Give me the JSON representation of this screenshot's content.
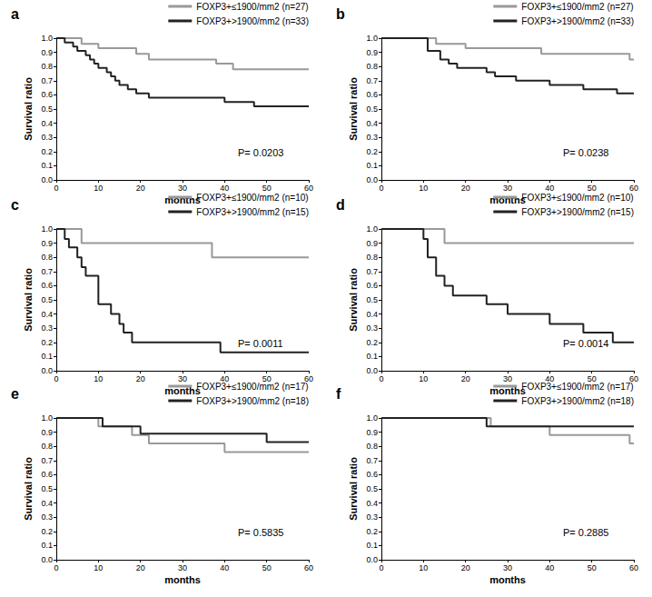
{
  "chart_data": [
    {
      "type": "step",
      "title": "a",
      "annotation": "P= 0.0203",
      "x_label": "months",
      "y_label": "Survival ratio",
      "xlim": [
        0,
        60
      ],
      "xticks": [
        0,
        10,
        20,
        30,
        40,
        50,
        60
      ],
      "ylim": [
        0,
        1
      ],
      "yticks": [
        {
          "value": 0,
          "label": "0.0"
        },
        0.1,
        0.2,
        0.3,
        0.4,
        0.5,
        0.6,
        0.7,
        0.8,
        0.9,
        {
          "value": 1,
          "label": "1.0"
        }
      ],
      "legend": "top-right",
      "grid": false,
      "series": [
        {
          "name": "FOXP3+≤1900/mm2 (n=27)",
          "color": "#999999",
          "x": [
            0,
            6,
            10,
            19,
            22,
            38,
            42,
            60
          ],
          "values": [
            1.0,
            0.96,
            0.93,
            0.89,
            0.85,
            0.82,
            0.78,
            0.78
          ]
        },
        {
          "name": "FOXP3+>1900/mm2 (n=33)",
          "color": "#222222",
          "x": [
            0,
            2,
            4,
            5,
            7,
            8,
            9,
            10,
            12,
            13,
            14,
            15,
            17,
            19,
            22,
            40,
            47,
            60
          ],
          "values": [
            1.0,
            0.97,
            0.94,
            0.91,
            0.88,
            0.85,
            0.82,
            0.79,
            0.76,
            0.73,
            0.7,
            0.67,
            0.64,
            0.61,
            0.58,
            0.55,
            0.52,
            0.52
          ]
        }
      ]
    },
    {
      "type": "step",
      "title": "b",
      "annotation": "P= 0.0238",
      "x_label": "months",
      "y_label": "Survival ratio",
      "xlim": [
        0,
        60
      ],
      "xticks": [
        0,
        10,
        20,
        30,
        40,
        50,
        60
      ],
      "ylim": [
        0,
        1
      ],
      "yticks": [
        {
          "value": 0,
          "label": "0.0"
        },
        0.1,
        0.2,
        0.3,
        0.4,
        0.5,
        0.6,
        0.7,
        0.8,
        0.9,
        {
          "value": 1,
          "label": "1.0"
        }
      ],
      "legend": "top-right",
      "grid": false,
      "series": [
        {
          "name": "FOXP3+≤1900/mm2 (n=27)",
          "color": "#999999",
          "x": [
            0,
            13,
            20,
            38,
            59,
            60
          ],
          "values": [
            1.0,
            0.96,
            0.93,
            0.89,
            0.85,
            0.85
          ]
        },
        {
          "name": "FOXP3+>1900/mm2 (n=33)",
          "color": "#222222",
          "x": [
            0,
            11,
            14,
            16,
            18,
            25,
            27,
            32,
            40,
            48,
            56,
            60
          ],
          "values": [
            1.0,
            0.91,
            0.85,
            0.82,
            0.79,
            0.76,
            0.73,
            0.7,
            0.67,
            0.64,
            0.61,
            0.61
          ]
        }
      ]
    },
    {
      "type": "step",
      "title": "c",
      "annotation": "P= 0.0011",
      "x_label": "months",
      "y_label": "Survival ratio",
      "xlim": [
        0,
        60
      ],
      "xticks": [
        0,
        10,
        20,
        30,
        40,
        50,
        60
      ],
      "ylim": [
        0,
        1
      ],
      "yticks": [
        {
          "value": 0,
          "label": "0.0"
        },
        0.1,
        0.2,
        0.3,
        0.4,
        0.5,
        0.6,
        0.7,
        0.8,
        0.9,
        {
          "value": 1,
          "label": "1.0"
        }
      ],
      "legend": "top-right",
      "grid": false,
      "series": [
        {
          "name": "FOXP3+≤1900/mm2 (n=10)",
          "color": "#999999",
          "x": [
            0,
            6,
            37,
            60
          ],
          "values": [
            1.0,
            0.9,
            0.8,
            0.8
          ]
        },
        {
          "name": "FOXP3+>1900/mm2 (n=15)",
          "color": "#222222",
          "x": [
            0,
            2,
            3,
            5,
            6,
            7,
            10,
            13,
            15,
            16,
            18,
            39,
            60
          ],
          "values": [
            1.0,
            0.93,
            0.87,
            0.8,
            0.73,
            0.67,
            0.47,
            0.4,
            0.33,
            0.27,
            0.2,
            0.13,
            0.13
          ]
        }
      ]
    },
    {
      "type": "step",
      "title": "d",
      "annotation": "P= 0.0014",
      "x_label": "months",
      "y_label": "Survival ratio",
      "xlim": [
        0,
        60
      ],
      "xticks": [
        0,
        10,
        20,
        30,
        40,
        50,
        60
      ],
      "ylim": [
        0,
        1
      ],
      "yticks": [
        {
          "value": 0,
          "label": "0.0"
        },
        0.1,
        0.2,
        0.3,
        0.4,
        0.5,
        0.6,
        0.7,
        0.8,
        0.9,
        {
          "value": 1,
          "label": "1.0"
        }
      ],
      "legend": "top-right",
      "grid": false,
      "series": [
        {
          "name": "FOXP3+≤1900/mm2 (n=10)",
          "color": "#999999",
          "x": [
            0,
            15,
            60
          ],
          "values": [
            1.0,
            0.9,
            0.9
          ]
        },
        {
          "name": "FOXP3+>1900/mm2 (n=15)",
          "color": "#222222",
          "x": [
            0,
            10,
            11,
            13,
            15,
            17,
            25,
            30,
            40,
            48,
            55,
            60
          ],
          "values": [
            1.0,
            0.93,
            0.8,
            0.67,
            0.6,
            0.53,
            0.47,
            0.4,
            0.33,
            0.27,
            0.2,
            0.2
          ]
        }
      ]
    },
    {
      "type": "step",
      "title": "e",
      "annotation": "P= 0.5835",
      "x_label": "months",
      "y_label": "Survival ratio",
      "xlim": [
        0,
        60
      ],
      "xticks": [
        0,
        10,
        20,
        30,
        40,
        50,
        60
      ],
      "ylim": [
        0,
        1
      ],
      "yticks": [
        {
          "value": 0,
          "label": "0.0"
        },
        0.1,
        0.2,
        0.3,
        0.4,
        0.5,
        0.6,
        0.7,
        0.8,
        0.9,
        {
          "value": 1,
          "label": "1.0"
        }
      ],
      "legend": "top-right",
      "grid": false,
      "series": [
        {
          "name": "FOXP3+≤1900/mm2 (n=17)",
          "color": "#999999",
          "x": [
            0,
            10,
            18,
            22,
            40,
            60
          ],
          "values": [
            1.0,
            0.94,
            0.88,
            0.82,
            0.76,
            0.76
          ]
        },
        {
          "name": "FOXP3+>1900/mm2 (n=18)",
          "color": "#222222",
          "x": [
            0,
            11,
            20,
            50,
            60
          ],
          "values": [
            1.0,
            0.94,
            0.89,
            0.83,
            0.83
          ]
        }
      ]
    },
    {
      "type": "step",
      "title": "f",
      "annotation": "P= 0.2885",
      "x_label": "months",
      "y_label": "Survival ratio",
      "xlim": [
        0,
        60
      ],
      "xticks": [
        0,
        10,
        20,
        30,
        40,
        50,
        60
      ],
      "ylim": [
        0,
        1
      ],
      "yticks": [
        {
          "value": 0,
          "label": "0.0"
        },
        0.1,
        0.2,
        0.3,
        0.4,
        0.5,
        0.6,
        0.7,
        0.8,
        0.9,
        {
          "value": 1,
          "label": "1.0"
        }
      ],
      "legend": "top-right",
      "grid": false,
      "series": [
        {
          "name": "FOXP3+≤1900/mm2 (n=17)",
          "color": "#999999",
          "x": [
            0,
            26,
            40,
            59,
            60
          ],
          "values": [
            1.0,
            0.94,
            0.88,
            0.82,
            0.82
          ]
        },
        {
          "name": "FOXP3+>1900/mm2 (n=18)",
          "color": "#222222",
          "x": [
            0,
            25,
            60
          ],
          "values": [
            1.0,
            0.94,
            0.94
          ]
        }
      ]
    }
  ]
}
